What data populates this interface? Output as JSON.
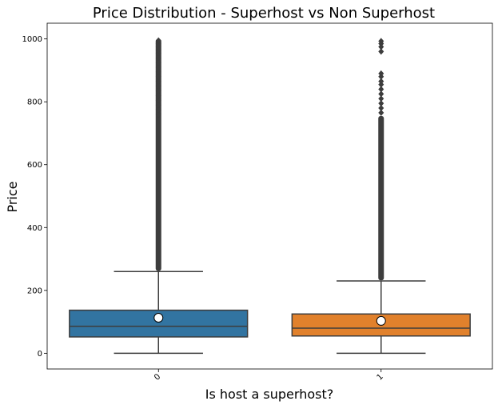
{
  "chart_data": {
    "type": "box",
    "title": "Price Distribution - Superhost vs Non Superhost",
    "xlabel": "Is host a superhost?",
    "ylabel": "Price",
    "categories": [
      "0",
      "1"
    ],
    "yticks": [
      0,
      200,
      400,
      600,
      800,
      1000
    ],
    "ylim": [
      -50,
      1050
    ],
    "grid": false,
    "boxes": [
      {
        "category": "0",
        "color": "#3274a1",
        "whisker_low": 0,
        "q1": 52,
        "median": 86,
        "q3": 137,
        "whisker_high": 260,
        "mean": 113,
        "outliers_range": [
          262,
          1000
        ],
        "sparse_outliers": [
          760,
          775,
          790,
          805,
          820,
          835,
          850,
          865,
          880,
          895,
          910,
          925,
          940,
          955,
          965,
          975,
          985,
          995
        ]
      },
      {
        "category": "1",
        "color": "#e1812c",
        "whisker_low": 0,
        "q1": 55,
        "median": 80,
        "q3": 125,
        "whisker_high": 230,
        "mean": 103,
        "outliers_range": [
          232,
          755
        ],
        "sparse_outliers": [
          765,
          780,
          795,
          810,
          825,
          840,
          855,
          865,
          880,
          890,
          960,
          975,
          985,
          993
        ]
      }
    ]
  }
}
